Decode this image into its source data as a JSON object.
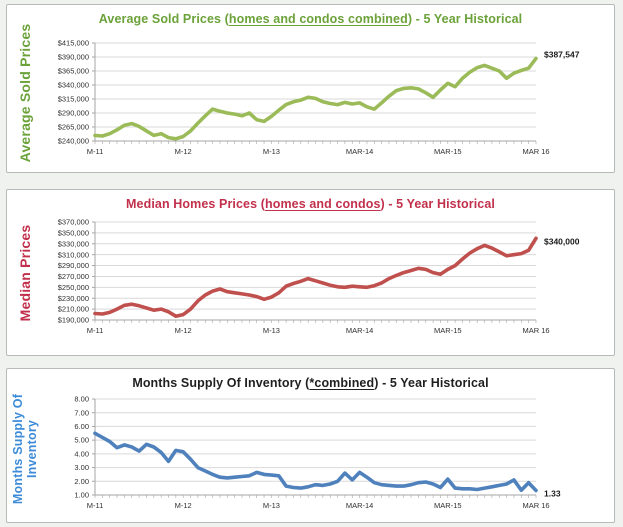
{
  "style": {
    "page_background": "#f0f2f0",
    "panel_background": "#ffffff",
    "panel_border_color": "#b6bab8",
    "grid_color": "#d9d9d9",
    "axis_color": "#a6a6a6",
    "tick_label_color": "#303030",
    "end_label_color": "#1a1a1a"
  },
  "chart_data": [
    {
      "type": "line",
      "title_prefix": "Average Sold Prices (",
      "title_underlined": "homes and condos combined",
      "title_suffix": ") - 5 Year Historical",
      "title_color": "#6ba23a",
      "ylabel": "Average Sold Prices",
      "ylabel_color": "#6ba23a",
      "line_color": "#9bbb59",
      "xlabel": "",
      "x_months": 61,
      "x_tick_labels": [
        {
          "i": 0,
          "label": "M-11"
        },
        {
          "i": 12,
          "label": "M-12"
        },
        {
          "i": 24,
          "label": "M-13"
        },
        {
          "i": 36,
          "label": "MAR-14"
        },
        {
          "i": 48,
          "label": "MAR-15"
        },
        {
          "i": 60,
          "label": "MAR 16"
        }
      ],
      "ylim": [
        240000,
        415000
      ],
      "grid": true,
      "y_ticks": [
        {
          "label": "$415,000",
          "value": 415000
        },
        {
          "label": "$390,000",
          "value": 390000
        },
        {
          "label": "$365,000",
          "value": 365000
        },
        {
          "label": "$340,000",
          "value": 340000
        },
        {
          "label": "$315,000",
          "value": 315000
        },
        {
          "label": "$290,000",
          "value": 290000
        },
        {
          "label": "$265,000",
          "value": 265000
        },
        {
          "label": "$240,000",
          "value": 240000
        }
      ],
      "values": [
        250000,
        249000,
        253000,
        260000,
        268000,
        271000,
        266000,
        258000,
        250000,
        253000,
        246000,
        244000,
        248000,
        258000,
        272000,
        285000,
        297000,
        293000,
        290000,
        288000,
        285000,
        290000,
        278000,
        275000,
        284000,
        295000,
        305000,
        310000,
        313000,
        318000,
        316000,
        310000,
        307000,
        305000,
        309000,
        306000,
        308000,
        301000,
        297000,
        308000,
        320000,
        330000,
        334000,
        335000,
        333000,
        326000,
        318000,
        331000,
        343000,
        337000,
        352000,
        363000,
        371000,
        375000,
        370000,
        365000,
        352000,
        361000,
        366000,
        370000,
        387547
      ],
      "end_label": "$387,547"
    },
    {
      "type": "line",
      "title_prefix": "Median Homes Prices (",
      "title_underlined": "homes and condos",
      "title_suffix": ") - 5 Year Historical",
      "title_color": "#c2304c",
      "ylabel": "Median Prices",
      "ylabel_color": "#c2304c",
      "line_color": "#c0504d",
      "xlabel": "",
      "x_months": 61,
      "x_tick_labels": [
        {
          "i": 0,
          "label": "M-11"
        },
        {
          "i": 12,
          "label": "M-12"
        },
        {
          "i": 24,
          "label": "M-13"
        },
        {
          "i": 36,
          "label": "MAR-14"
        },
        {
          "i": 48,
          "label": "MAR-15"
        },
        {
          "i": 60,
          "label": "MAR 16"
        }
      ],
      "ylim": [
        190000,
        370000
      ],
      "grid": true,
      "y_ticks": [
        {
          "label": "$370,000",
          "value": 370000
        },
        {
          "label": "$350,000",
          "value": 350000
        },
        {
          "label": "$330,000",
          "value": 330000
        },
        {
          "label": "$310,000",
          "value": 310000
        },
        {
          "label": "$290,000",
          "value": 290000
        },
        {
          "label": "$270,000",
          "value": 270000
        },
        {
          "label": "$250,000",
          "value": 250000
        },
        {
          "label": "$230,000",
          "value": 230000
        },
        {
          "label": "$210,000",
          "value": 210000
        },
        {
          "label": "$190,000",
          "value": 190000
        }
      ],
      "values": [
        202000,
        201000,
        204000,
        210000,
        217000,
        219000,
        216000,
        212000,
        208000,
        210000,
        205000,
        197000,
        200000,
        210000,
        225000,
        236000,
        243000,
        247000,
        242000,
        240000,
        238000,
        236000,
        233000,
        228000,
        232000,
        240000,
        252000,
        257000,
        261000,
        266000,
        262000,
        258000,
        254000,
        251000,
        250000,
        252000,
        251000,
        250000,
        253000,
        258000,
        266000,
        272000,
        277000,
        281000,
        285000,
        283000,
        277000,
        274000,
        283000,
        290000,
        302000,
        313000,
        321000,
        327000,
        322000,
        315000,
        308000,
        310000,
        312000,
        318000,
        340000
      ],
      "end_label": "$340,000"
    },
    {
      "type": "line",
      "title_prefix": "Months Supply Of Inventory (",
      "title_underlined": "*combined",
      "title_suffix": ") - 5 Year Historical",
      "title_color": "#1f1f1f",
      "ylabel": "Months Supply Of Inventory",
      "ylabel_color": "#3c8bd9",
      "line_color": "#4f81bd",
      "xlabel": "",
      "x_months": 61,
      "x_tick_labels": [
        {
          "i": 0,
          "label": "M-11"
        },
        {
          "i": 12,
          "label": "M-12"
        },
        {
          "i": 24,
          "label": "M-13"
        },
        {
          "i": 36,
          "label": "MAR-14"
        },
        {
          "i": 48,
          "label": "MAR-15"
        },
        {
          "i": 60,
          "label": "MAR 16"
        }
      ],
      "ylim": [
        1.0,
        8.0
      ],
      "grid": true,
      "y_ticks": [
        {
          "label": "8.00",
          "value": 8
        },
        {
          "label": "7.00",
          "value": 7
        },
        {
          "label": "6.00",
          "value": 6
        },
        {
          "label": "5.00",
          "value": 5
        },
        {
          "label": "4.00",
          "value": 4
        },
        {
          "label": "3.00",
          "value": 3
        },
        {
          "label": "2.00",
          "value": 2
        },
        {
          "label": "1.00",
          "value": 1
        }
      ],
      "values": [
        5.5,
        5.2,
        4.9,
        4.45,
        4.65,
        4.5,
        4.2,
        4.7,
        4.5,
        4.1,
        3.45,
        4.25,
        4.15,
        3.6,
        3.0,
        2.75,
        2.5,
        2.3,
        2.25,
        2.3,
        2.35,
        2.4,
        2.65,
        2.5,
        2.45,
        2.4,
        1.65,
        1.55,
        1.5,
        1.6,
        1.75,
        1.7,
        1.8,
        2.0,
        2.6,
        2.1,
        2.65,
        2.3,
        1.9,
        1.75,
        1.7,
        1.65,
        1.65,
        1.75,
        1.9,
        1.95,
        1.8,
        1.55,
        2.15,
        1.5,
        1.45,
        1.45,
        1.4,
        1.5,
        1.6,
        1.7,
        1.8,
        2.1,
        1.35,
        1.9,
        1.33
      ],
      "end_label": "1.33"
    }
  ]
}
